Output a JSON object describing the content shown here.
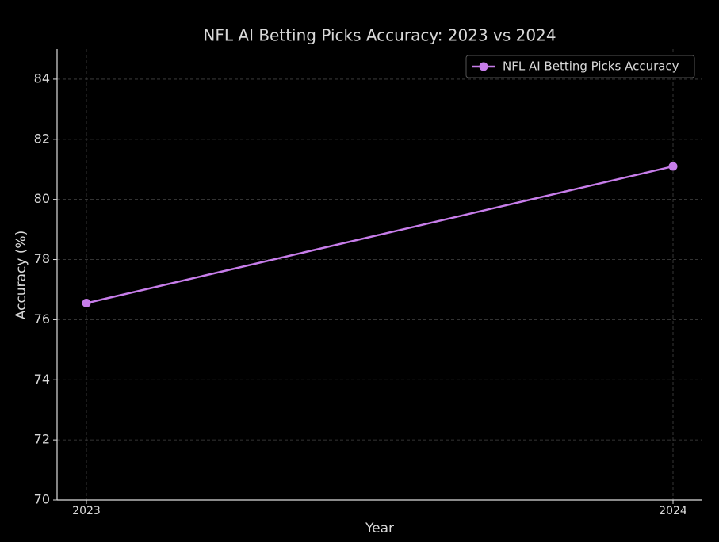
{
  "chart_data": {
    "type": "line",
    "title": "NFL AI Betting Picks Accuracy: 2023 vs 2024",
    "x_label": "Year",
    "y_label": "Accuracy (%)",
    "x": [
      2023,
      2024
    ],
    "series": [
      {
        "name": "NFL AI Betting Picks Accuracy",
        "color": "#c77dea",
        "values": [
          76.55,
          81.1
        ]
      }
    ],
    "xlim": [
      2022.95,
      2024.05
    ],
    "xticks": [
      2023,
      2024
    ],
    "ylim": [
      70,
      85
    ],
    "yticks": [
      70,
      72,
      74,
      76,
      78,
      80,
      82,
      84
    ],
    "grid": true,
    "legend": "upper right"
  }
}
